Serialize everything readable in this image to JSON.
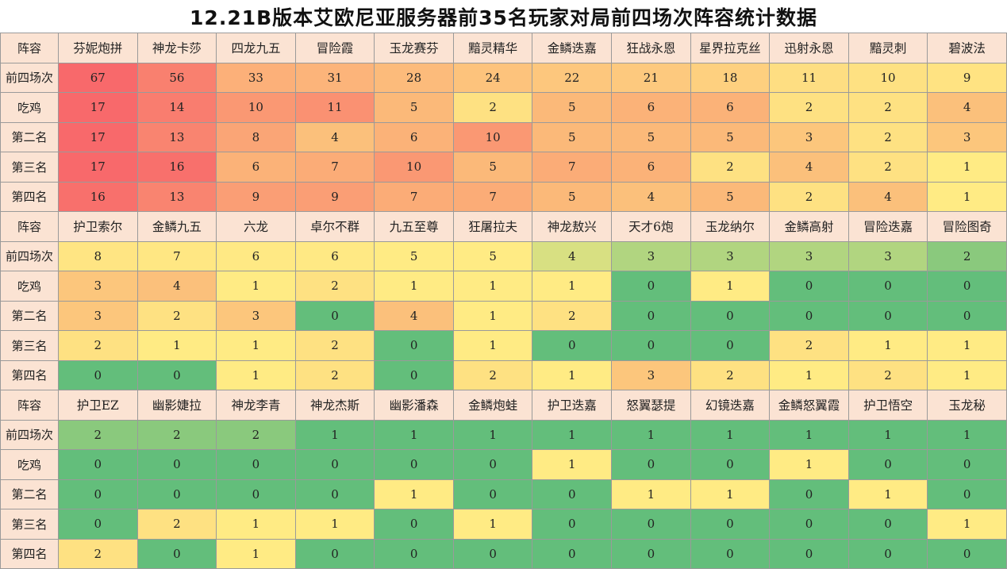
{
  "title": "12.21B版本艾欧尼亚服务器前35名玩家对局前四场次阵容统计数据",
  "chart_data": {
    "type": "table",
    "title": "12.21B版本艾欧尼亚服务器前35名玩家对局前四场次阵容统计数据",
    "row_labels": [
      "前四场次",
      "吃鸡",
      "第二名",
      "第三名",
      "第四名"
    ],
    "header_label": "阵容",
    "color_scale": {
      "low": "#63be7b",
      "mid": "#ffeb84",
      "high": "#f8696b"
    },
    "blocks": [
      {
        "columns": [
          "芬妮炮拼",
          "神龙卡莎",
          "四龙九五",
          "冒险霞",
          "玉龙赛芬",
          "黯灵精华",
          "金鳞迭嘉",
          "狂战永恩",
          "星界拉克丝",
          "迅射永恩",
          "黯灵刺",
          "碧波法"
        ],
        "rows": [
          [
            67,
            56,
            33,
            31,
            28,
            24,
            22,
            21,
            18,
            11,
            10,
            9
          ],
          [
            17,
            14,
            10,
            11,
            5,
            2,
            5,
            6,
            6,
            2,
            2,
            4
          ],
          [
            17,
            13,
            8,
            4,
            6,
            10,
            5,
            5,
            5,
            3,
            2,
            3
          ],
          [
            17,
            16,
            6,
            7,
            10,
            5,
            7,
            6,
            2,
            4,
            2,
            1
          ],
          [
            16,
            13,
            9,
            9,
            7,
            7,
            5,
            4,
            5,
            2,
            4,
            1
          ]
        ]
      },
      {
        "columns": [
          "护卫索尔",
          "金鳞九五",
          "六龙",
          "卓尔不群",
          "九五至尊",
          "狂屠拉夫",
          "神龙敖兴",
          "天才6炮",
          "玉龙纳尔",
          "金鳞高射",
          "冒险迭嘉",
          "冒险图奇"
        ],
        "rows": [
          [
            8,
            7,
            6,
            6,
            5,
            5,
            4,
            3,
            3,
            3,
            3,
            2
          ],
          [
            3,
            4,
            1,
            2,
            1,
            1,
            1,
            0,
            1,
            0,
            0,
            0
          ],
          [
            3,
            2,
            3,
            0,
            4,
            1,
            2,
            0,
            0,
            0,
            0,
            0
          ],
          [
            2,
            1,
            1,
            2,
            0,
            1,
            0,
            0,
            0,
            2,
            1,
            1
          ],
          [
            0,
            0,
            1,
            2,
            0,
            2,
            1,
            3,
            2,
            1,
            2,
            1
          ]
        ]
      },
      {
        "columns": [
          "护卫EZ",
          "幽影婕拉",
          "神龙李青",
          "神龙杰斯",
          "幽影潘森",
          "金鳞炮蛙",
          "护卫迭嘉",
          "怒翼瑟提",
          "幻镜迭嘉",
          "金鳞怒翼霞",
          "护卫悟空",
          "玉龙秘"
        ],
        "rows": [
          [
            2,
            2,
            2,
            1,
            1,
            1,
            1,
            1,
            1,
            1,
            1,
            1
          ],
          [
            0,
            0,
            0,
            0,
            0,
            0,
            1,
            0,
            0,
            1,
            0,
            0
          ],
          [
            0,
            0,
            0,
            0,
            1,
            0,
            0,
            1,
            1,
            0,
            1,
            0
          ],
          [
            0,
            2,
            1,
            1,
            0,
            1,
            0,
            0,
            0,
            0,
            0,
            1
          ],
          [
            2,
            0,
            1,
            0,
            0,
            0,
            0,
            0,
            0,
            0,
            0,
            0
          ]
        ]
      }
    ]
  }
}
